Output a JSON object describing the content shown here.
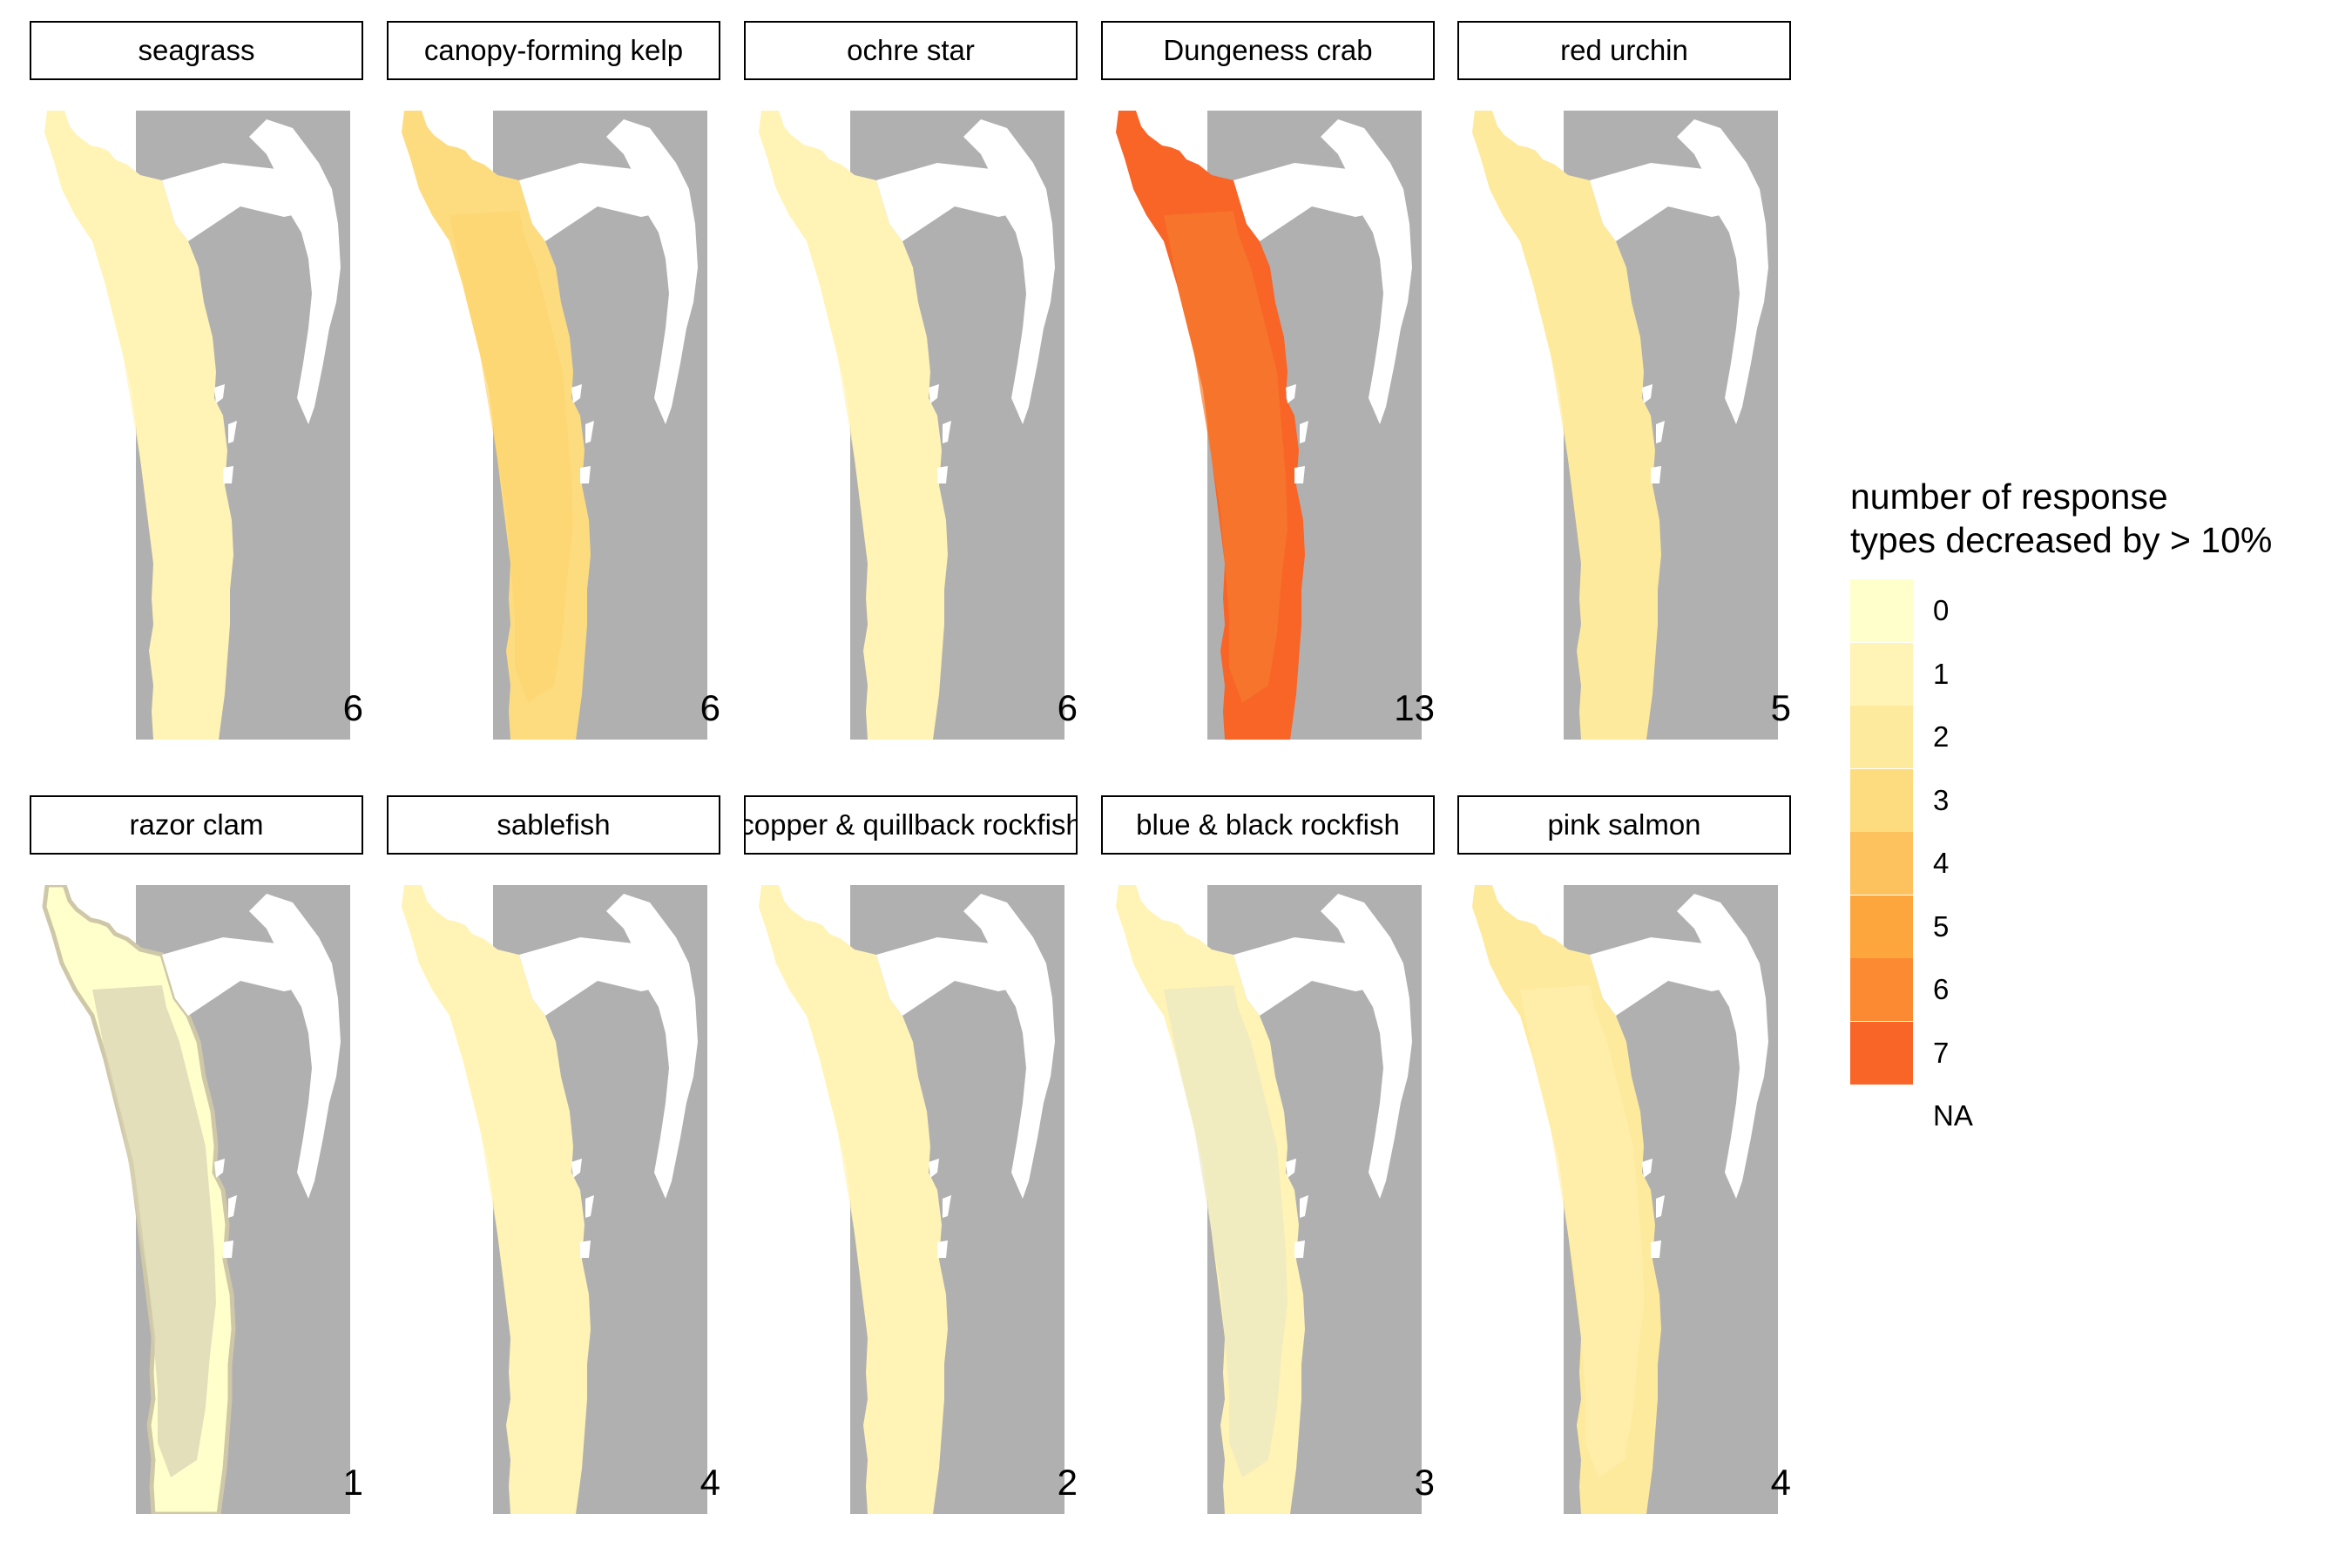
{
  "panels": [
    {
      "title": "seagrass",
      "count": "6",
      "fill": "#fff3b5",
      "shade": "#fff3b5",
      "edge": "none"
    },
    {
      "title": "canopy-forming kelp",
      "count": "6",
      "fill": "#fddc80",
      "shade": "#fdd470",
      "edge": "none"
    },
    {
      "title": "ochre star",
      "count": "6",
      "fill": "#fff3b5",
      "shade": "#fff3b5",
      "edge": "none"
    },
    {
      "title": "Dungeness crab",
      "count": "13",
      "fill": "#f96427",
      "shade": "#f57a2d",
      "edge": "none"
    },
    {
      "title": "red urchin",
      "count": "5",
      "fill": "#feea9c",
      "shade": "#feea9c",
      "edge": "none"
    },
    {
      "title": "razor clam",
      "count": "1",
      "fill": "#ffffcc",
      "shade": "#d8d2b4",
      "edge": "#cfc8a8"
    },
    {
      "title": "sablefish",
      "count": "4",
      "fill": "#fff3b5",
      "shade": "#fff3b5",
      "edge": "none"
    },
    {
      "title": "copper & quillback rockfish",
      "count": "2",
      "fill": "#fff3b5",
      "shade": "#fff3b5",
      "edge": "none"
    },
    {
      "title": "blue & black rockfish",
      "count": "3",
      "fill": "#fff3b5",
      "shade": "#ebe7c4",
      "edge": "none"
    },
    {
      "title": "pink salmon",
      "count": "4",
      "fill": "#feea9c",
      "shade": "#fff0b0",
      "edge": "none"
    }
  ],
  "legend": {
    "title_line1": "number of response",
    "title_line2": "types decreased by > 10%",
    "items": [
      {
        "label": "0",
        "color": "#ffffcc"
      },
      {
        "label": "1",
        "color": "#fff3b5"
      },
      {
        "label": "2",
        "color": "#feea9c"
      },
      {
        "label": "3",
        "color": "#fddc80"
      },
      {
        "label": "4",
        "color": "#fdc15d"
      },
      {
        "label": "5",
        "color": "#fda63e"
      },
      {
        "label": "6",
        "color": "#fb8a33"
      },
      {
        "label": "7",
        "color": "#f96427"
      },
      {
        "label": "NA",
        "color": "#ffffff"
      }
    ]
  },
  "colors": {
    "land": "#b0b0b0",
    "water": "#ffffff"
  }
}
